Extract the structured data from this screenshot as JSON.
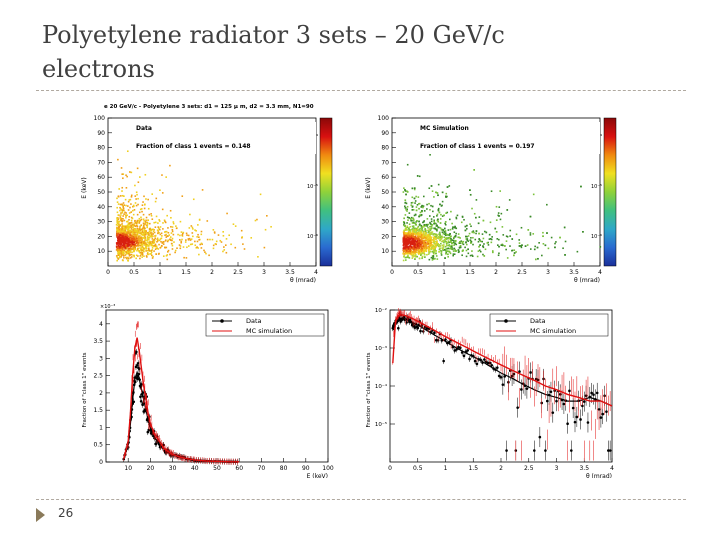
{
  "slide": {
    "title_line1": "Polyetylene radiator 3 sets – 20 GeV/c",
    "title_line2": "electrons",
    "page_number": "26"
  },
  "chart_data": [
    {
      "type": "heatmap",
      "title": "e 20 GeV/c - Polyetylene 3 sets: d1 = 125 μ m, d2 = 3.3 mm, N1=90",
      "label": "Data",
      "annotation": "Fraction of class 1 events = 0.148",
      "xlabel": "θ (mrad)",
      "ylabel": "E (keV)",
      "xlim": [
        0,
        4
      ],
      "ylim": [
        0,
        100
      ],
      "xticks": [
        "0",
        "0.5",
        "1",
        "1.5",
        "2",
        "2.5",
        "3",
        "3.5",
        "4"
      ],
      "yticks": [
        "10",
        "20",
        "30",
        "40",
        "50",
        "60",
        "70",
        "80",
        "90",
        "100"
      ],
      "colorbar_ticks": [
        "10⁻⁴",
        "10⁻⁵",
        "10⁻⁶"
      ],
      "density_peak": {
        "x": 0.15,
        "y": 17
      },
      "colors": [
        "#1a2f9a",
        "#2fa8c8",
        "#8fd23a",
        "#f0e020",
        "#f08a10",
        "#d81010"
      ]
    },
    {
      "type": "heatmap",
      "title": "",
      "label": "MC Simulation",
      "annotation": "Fraction of class 1 events = 0.197",
      "xlabel": "θ (mrad)",
      "ylabel": "E (keV)",
      "xlim": [
        0,
        4
      ],
      "ylim": [
        0,
        100
      ],
      "xticks": [
        "0",
        "0.5",
        "1",
        "1.5",
        "2",
        "2.5",
        "3",
        "3.5",
        "4"
      ],
      "yticks": [
        "10",
        "20",
        "30",
        "40",
        "50",
        "60",
        "70",
        "80",
        "90",
        "100"
      ],
      "colorbar_ticks": [
        "10⁻⁴",
        "10⁻⁵",
        "10⁻⁶"
      ],
      "density_peak": {
        "x": 0.2,
        "y": 16
      }
    },
    {
      "type": "line",
      "xlabel": "E (keV)",
      "ylabel": "Fraction of \"class 1\" events",
      "xlim": [
        0,
        100
      ],
      "ylim": [
        0,
        0.0044
      ],
      "exponent_label": "×10⁻³",
      "xticks": [
        "10",
        "20",
        "30",
        "40",
        "50",
        "60",
        "70",
        "80",
        "90",
        "100"
      ],
      "yticks": [
        "0",
        "0.5",
        "1",
        "1.5",
        "2",
        "2.5",
        "3",
        "3.5",
        "4"
      ],
      "legend_position": "top-right",
      "series": [
        {
          "name": "Data",
          "color": "#000000",
          "x": [
            8,
            10,
            11,
            12,
            13,
            14,
            15,
            16,
            17,
            18,
            19,
            20,
            22,
            24,
            26,
            28,
            30,
            33,
            36,
            40,
            45,
            50,
            55,
            60
          ],
          "y": [
            0.0001,
            0.0005,
            0.0011,
            0.0018,
            0.0024,
            0.0026,
            0.0024,
            0.0021,
            0.0018,
            0.0015,
            0.0012,
            0.001,
            0.0007,
            0.0005,
            0.0004,
            0.0003,
            0.0002,
            0.00015,
            0.0001,
            5e-05,
            3e-05,
            2e-05,
            1e-05,
            5e-06
          ]
        },
        {
          "name": "MC simulation",
          "color": "#e01010",
          "x": [
            8,
            10,
            11,
            12,
            13,
            14,
            15,
            16,
            17,
            18,
            19,
            20,
            22,
            24,
            26,
            28,
            30,
            33,
            36,
            40,
            45,
            50,
            55,
            60
          ],
          "y": [
            0.0001,
            0.0006,
            0.0014,
            0.0025,
            0.0033,
            0.0036,
            0.0032,
            0.0027,
            0.0022,
            0.0018,
            0.0014,
            0.0011,
            0.0008,
            0.0006,
            0.0004,
            0.0003,
            0.00022,
            0.00015,
            0.0001,
            6e-05,
            3e-05,
            2e-05,
            1e-05,
            5e-06
          ]
        }
      ]
    },
    {
      "type": "line",
      "xlabel": "θ (mrad)",
      "ylabel": "Fraction of \"class 1\" events",
      "xlim": [
        0,
        4
      ],
      "ylim_log": [
        -6,
        -2
      ],
      "log_y": true,
      "xticks": [
        "0",
        "0.5",
        "1",
        "1.5",
        "2",
        "2.5",
        "3",
        "3.5",
        "4"
      ],
      "yticks": [
        "10⁻²",
        "10⁻³",
        "10⁻⁴",
        "10⁻⁵"
      ],
      "legend_position": "top-right",
      "series": [
        {
          "name": "Data",
          "color": "#000000",
          "x": [
            0.05,
            0.1,
            0.15,
            0.2,
            0.3,
            0.4,
            0.5,
            0.6,
            0.8,
            1.0,
            1.2,
            1.4,
            1.6,
            1.8,
            2.0,
            2.2,
            2.4,
            2.6,
            2.8,
            3.0,
            3.2,
            3.4,
            3.6,
            3.8,
            4.0
          ],
          "y": [
            0.003,
            0.0045,
            0.0055,
            0.006,
            0.0055,
            0.0048,
            0.004,
            0.0033,
            0.0022,
            0.0015,
            0.001,
            0.0007,
            0.0005,
            0.00033,
            0.00022,
            0.00016,
            0.00011,
            8e-05,
            6e-05,
            5e-05,
            4e-05,
            4e-05,
            5e-05,
            4e-05,
            3e-05
          ]
        },
        {
          "name": "MC simulation",
          "color": "#e01010",
          "x": [
            0.05,
            0.1,
            0.15,
            0.2,
            0.3,
            0.4,
            0.5,
            0.6,
            0.8,
            1.0,
            1.2,
            1.4,
            1.6,
            1.8,
            2.0,
            2.2,
            2.4,
            2.6,
            2.8,
            3.0,
            3.2,
            3.4,
            3.6,
            3.8,
            4.0
          ],
          "y": [
            0.0004,
            0.005,
            0.0072,
            0.0075,
            0.007,
            0.006,
            0.005,
            0.0042,
            0.0029,
            0.002,
            0.0014,
            0.001,
            0.0007,
            0.0005,
            0.00036,
            0.00026,
            0.00019,
            0.00014,
            0.0001,
            8e-05,
            6e-05,
            5e-05,
            4e-05,
            4e-05,
            3e-05
          ]
        }
      ]
    }
  ]
}
